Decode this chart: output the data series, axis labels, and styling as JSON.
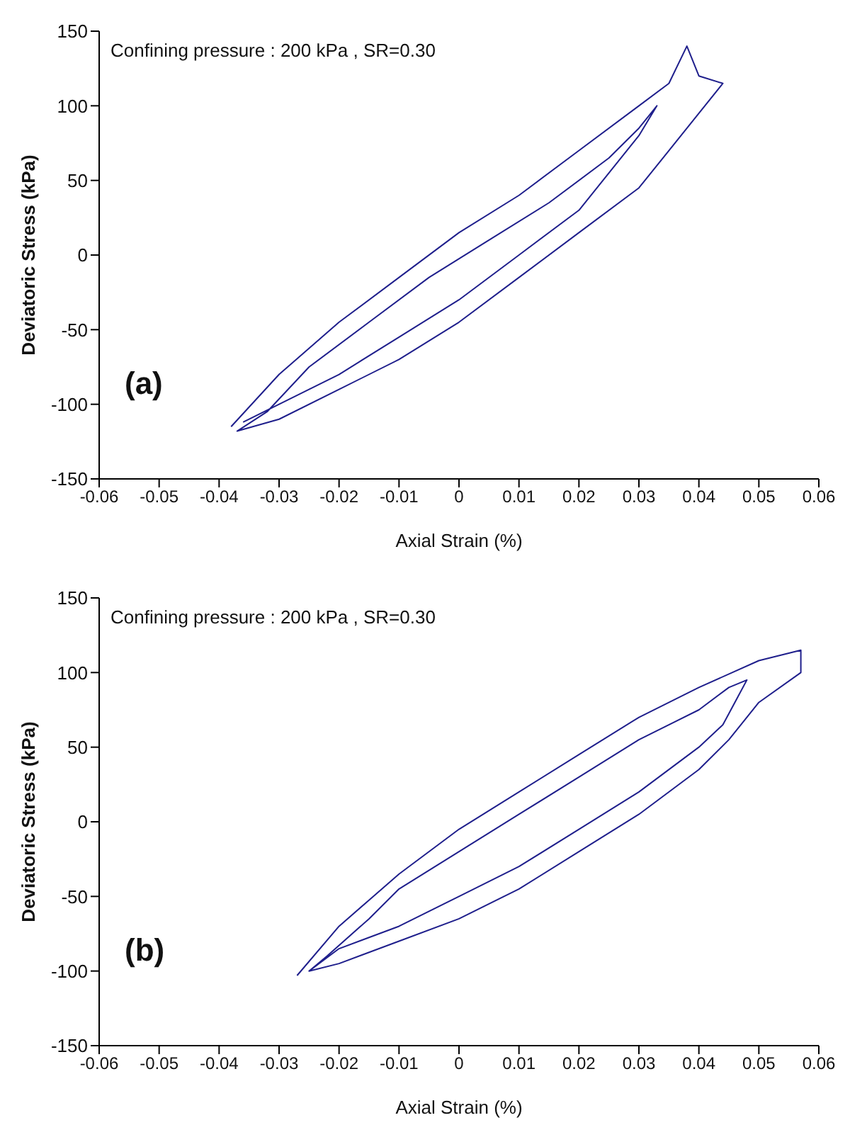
{
  "chart_data": [
    {
      "type": "line",
      "title": null,
      "xlabel": "Axial Strain (%)",
      "ylabel": "Deviatoric Stress (kPa)",
      "annotations": [
        "Confining pressure : 200 kPa , SR=0.30",
        "(a)"
      ],
      "xlim": [
        -0.06,
        0.06
      ],
      "xticks": [
        -0.06,
        -0.05,
        -0.04,
        -0.03,
        -0.02,
        -0.01,
        0,
        0.01,
        0.02,
        0.03,
        0.04,
        0.05,
        0.06
      ],
      "ylim": [
        -150,
        150
      ],
      "yticks": [
        -150,
        -100,
        -50,
        0,
        50,
        100,
        150
      ],
      "grid": false,
      "marker": "none",
      "line_style": "solid",
      "series": [
        {
          "color": "#1f1f8c",
          "x": [
            -0.038,
            -0.03,
            -0.02,
            -0.01,
            0,
            0.01,
            0.02,
            0.03,
            0.035,
            0.038,
            0.04,
            0.044,
            0.04,
            0.035,
            0.03,
            0.02,
            0.01,
            0,
            -0.01,
            -0.02,
            -0.03,
            -0.037,
            -0.032,
            -0.025,
            -0.015,
            -0.005,
            0.005,
            0.015,
            0.025,
            0.03,
            0.033,
            0.03,
            0.025,
            0.02,
            0.01,
            0,
            -0.01,
            -0.02,
            -0.03,
            -0.036
          ],
          "values": [
            -115,
            -80,
            -45,
            -15,
            15,
            40,
            70,
            100,
            115,
            140,
            120,
            115,
            95,
            70,
            45,
            15,
            -15,
            -45,
            -70,
            -90,
            -110,
            -118,
            -105,
            -75,
            -45,
            -15,
            10,
            35,
            65,
            85,
            100,
            80,
            55,
            30,
            0,
            -30,
            -55,
            -80,
            -100,
            -112
          ]
        }
      ]
    },
    {
      "type": "line",
      "title": null,
      "xlabel": "Axial Strain (%)",
      "ylabel": "Deviatoric Stress (kPa)",
      "annotations": [
        "Confining pressure : 200 kPa , SR=0.30",
        "(b)"
      ],
      "xlim": [
        -0.06,
        0.06
      ],
      "xticks": [
        -0.06,
        -0.05,
        -0.04,
        -0.03,
        -0.02,
        -0.01,
        0,
        0.01,
        0.02,
        0.03,
        0.04,
        0.05,
        0.06
      ],
      "ylim": [
        -150,
        150
      ],
      "yticks": [
        -150,
        -100,
        -50,
        0,
        50,
        100,
        150
      ],
      "grid": false,
      "marker": "none",
      "line_style": "solid",
      "series": [
        {
          "color": "#1f1f8c",
          "x": [
            -0.027,
            -0.02,
            -0.01,
            0,
            0.01,
            0.02,
            0.03,
            0.04,
            0.05,
            0.057,
            0.057,
            0.05,
            0.045,
            0.04,
            0.03,
            0.02,
            0.01,
            0,
            -0.01,
            -0.02,
            -0.025,
            -0.022,
            -0.015,
            -0.01,
            0,
            0.01,
            0.02,
            0.03,
            0.04,
            0.045,
            0.048,
            0.046,
            0.044,
            0.04,
            0.03,
            0.02,
            0.01,
            0,
            -0.01,
            -0.02,
            -0.025
          ],
          "values": [
            -103,
            -70,
            -35,
            -5,
            20,
            45,
            70,
            90,
            108,
            115,
            100,
            80,
            55,
            35,
            5,
            -20,
            -45,
            -65,
            -80,
            -95,
            -100,
            -90,
            -65,
            -45,
            -20,
            5,
            30,
            55,
            75,
            90,
            95,
            80,
            65,
            50,
            20,
            -5,
            -30,
            -50,
            -70,
            -85,
            -100
          ]
        }
      ]
    }
  ]
}
